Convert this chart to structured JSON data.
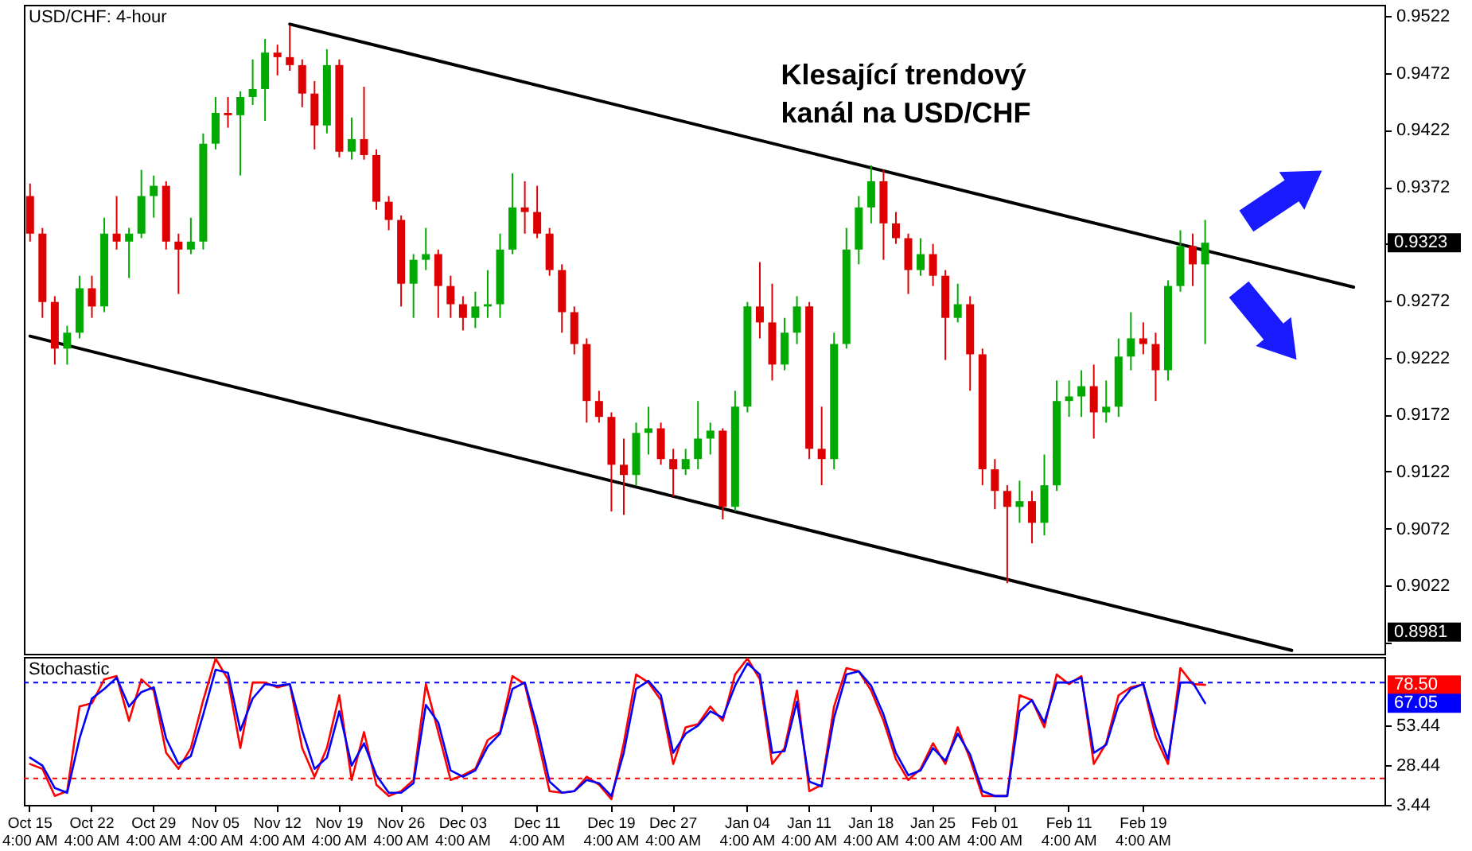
{
  "chart_data": [
    {
      "type": "candlestick",
      "title": "USD/CHF: 4-hour",
      "categories": [
        "Oct 15 4:00 AM",
        null,
        null,
        null,
        null,
        "Oct 22 4:00 AM",
        null,
        null,
        null,
        null,
        "Oct 29 4:00 AM",
        null,
        null,
        null,
        null,
        "Nov 05 4:00 AM",
        null,
        null,
        null,
        null,
        "Nov 12 4:00 AM",
        null,
        null,
        null,
        null,
        "Nov 19 4:00 AM",
        null,
        null,
        null,
        null,
        "Nov 26 4:00 AM",
        null,
        null,
        null,
        null,
        "Dec 03 4:00 AM",
        null,
        null,
        null,
        null,
        null,
        "Dec 11 4:00 AM",
        null,
        null,
        null,
        null,
        null,
        "Dec 19 4:00 AM",
        null,
        null,
        null,
        null,
        "Dec 27 4:00 AM",
        null,
        null,
        null,
        null,
        null,
        "Jan 04 4:00 AM",
        null,
        null,
        null,
        null,
        "Jan 11 4:00 AM",
        null,
        null,
        null,
        null,
        "Jan 18 4:00 AM",
        null,
        null,
        null,
        null,
        "Jan 25 4:00 AM",
        null,
        null,
        null,
        null,
        "Feb 01 4:00 AM",
        null,
        null,
        null,
        null,
        null,
        "Feb 11 4:00 AM",
        null,
        null,
        null,
        null,
        null,
        "Feb 19 4:00 AM",
        null,
        null,
        null,
        null,
        null,
        null,
        null,
        null,
        null,
        null,
        null,
        null,
        null,
        null,
        null,
        null,
        null,
        null,
        null
      ],
      "ohlc": [
        [
          0.9364,
          0.9375,
          0.9324,
          0.9331
        ],
        [
          0.9331,
          0.9336,
          0.9257,
          0.9271
        ],
        [
          0.9271,
          0.9276,
          0.9216,
          0.923
        ],
        [
          0.923,
          0.925,
          0.9216,
          0.9244
        ],
        [
          0.9244,
          0.9294,
          0.9239,
          0.9283
        ],
        [
          0.9283,
          0.9294,
          0.9257,
          0.9267
        ],
        [
          0.9267,
          0.9345,
          0.9262,
          0.9331
        ],
        [
          0.9331,
          0.9364,
          0.9317,
          0.9324
        ],
        [
          0.9324,
          0.9336,
          0.9292,
          0.9331
        ],
        [
          0.9331,
          0.9387,
          0.9327,
          0.9364
        ],
        [
          0.9364,
          0.9382,
          0.9345,
          0.9373
        ],
        [
          0.9373,
          0.9377,
          0.9317,
          0.9324
        ],
        [
          0.9324,
          0.9331,
          0.9278,
          0.9317
        ],
        [
          0.9317,
          0.9345,
          0.9313,
          0.9324
        ],
        [
          0.9324,
          0.9419,
          0.9317,
          0.941
        ],
        [
          0.941,
          0.9451,
          0.9405,
          0.9437
        ],
        [
          0.9437,
          0.9451,
          0.9424,
          0.9435
        ],
        [
          0.9435,
          0.9456,
          0.9382,
          0.9451
        ],
        [
          0.9451,
          0.9484,
          0.9444,
          0.9458
        ],
        [
          0.9458,
          0.9502,
          0.943,
          0.949
        ],
        [
          0.949,
          0.9497,
          0.947,
          0.9486
        ],
        [
          0.9486,
          0.9514,
          0.9474,
          0.9479
        ],
        [
          0.9479,
          0.9484,
          0.9442,
          0.9454
        ],
        [
          0.9454,
          0.9465,
          0.9405,
          0.9426
        ],
        [
          0.9426,
          0.9493,
          0.9419,
          0.9479
        ],
        [
          0.9479,
          0.9484,
          0.9398,
          0.9403
        ],
        [
          0.9403,
          0.9433,
          0.9396,
          0.9414
        ],
        [
          0.9414,
          0.946,
          0.9396,
          0.94
        ],
        [
          0.94,
          0.9405,
          0.9352,
          0.9359
        ],
        [
          0.9359,
          0.9364,
          0.9334,
          0.9343
        ],
        [
          0.9343,
          0.9347,
          0.9267,
          0.9287
        ],
        [
          0.9287,
          0.9313,
          0.9257,
          0.9308
        ],
        [
          0.9308,
          0.9336,
          0.9299,
          0.9313
        ],
        [
          0.9313,
          0.9317,
          0.9257,
          0.9285
        ],
        [
          0.9285,
          0.9294,
          0.9257,
          0.9269
        ],
        [
          0.9269,
          0.9276,
          0.9246,
          0.9257
        ],
        [
          0.9257,
          0.928,
          0.9248,
          0.9267
        ],
        [
          0.9267,
          0.9299,
          0.9257,
          0.9269
        ],
        [
          0.9269,
          0.9331,
          0.9257,
          0.9317
        ],
        [
          0.9317,
          0.9384,
          0.9313,
          0.9354
        ],
        [
          0.9354,
          0.9377,
          0.9331,
          0.935
        ],
        [
          0.935,
          0.9373,
          0.9327,
          0.9331
        ],
        [
          0.9331,
          0.9336,
          0.9294,
          0.9299
        ],
        [
          0.9299,
          0.9304,
          0.9244,
          0.9262
        ],
        [
          0.9262,
          0.9267,
          0.9225,
          0.9234
        ],
        [
          0.9234,
          0.9239,
          0.9165,
          0.9184
        ],
        [
          0.9184,
          0.9193,
          0.9165,
          0.917
        ],
        [
          0.917,
          0.9174,
          0.9087,
          0.9128
        ],
        [
          0.9128,
          0.9151,
          0.9084,
          0.9119
        ],
        [
          0.9119,
          0.9165,
          0.911,
          0.9156
        ],
        [
          0.9156,
          0.9179,
          0.9137,
          0.916
        ],
        [
          0.916,
          0.9165,
          0.9128,
          0.9133
        ],
        [
          0.9133,
          0.9142,
          0.91,
          0.9124
        ],
        [
          0.9124,
          0.9142,
          0.9119,
          0.9133
        ],
        [
          0.9133,
          0.9184,
          0.9124,
          0.9151
        ],
        [
          0.9151,
          0.9165,
          0.9137,
          0.9158
        ],
        [
          0.9158,
          0.916,
          0.908,
          0.9091
        ],
        [
          0.9091,
          0.9193,
          0.9087,
          0.9179
        ],
        [
          0.9179,
          0.9271,
          0.9174,
          0.9267
        ],
        [
          0.9267,
          0.9306,
          0.9239,
          0.9253
        ],
        [
          0.9253,
          0.9287,
          0.9202,
          0.9216
        ],
        [
          0.9216,
          0.9257,
          0.9211,
          0.9244
        ],
        [
          0.9244,
          0.9276,
          0.9234,
          0.9267
        ],
        [
          0.9267,
          0.9271,
          0.9133,
          0.9142
        ],
        [
          0.9142,
          0.9179,
          0.911,
          0.9133
        ],
        [
          0.9133,
          0.9244,
          0.9124,
          0.9234
        ],
        [
          0.9234,
          0.9336,
          0.923,
          0.9317
        ],
        [
          0.9317,
          0.9364,
          0.9304,
          0.9354
        ],
        [
          0.9354,
          0.9391,
          0.934,
          0.9377
        ],
        [
          0.9377,
          0.9387,
          0.9308,
          0.934
        ],
        [
          0.934,
          0.935,
          0.9322,
          0.9327
        ],
        [
          0.9327,
          0.9331,
          0.9278,
          0.9299
        ],
        [
          0.9299,
          0.9327,
          0.9294,
          0.9313
        ],
        [
          0.9313,
          0.9322,
          0.9285,
          0.9294
        ],
        [
          0.9294,
          0.9299,
          0.922,
          0.9257
        ],
        [
          0.9257,
          0.9287,
          0.9253,
          0.9269
        ],
        [
          0.9269,
          0.9276,
          0.9193,
          0.9225
        ],
        [
          0.9225,
          0.923,
          0.911,
          0.9124
        ],
        [
          0.9124,
          0.9133,
          0.9089,
          0.9105
        ],
        [
          0.9105,
          0.911,
          0.9024,
          0.9091
        ],
        [
          0.9091,
          0.9114,
          0.9077,
          0.9096
        ],
        [
          0.9096,
          0.9105,
          0.9059,
          0.9077
        ],
        [
          0.9077,
          0.9137,
          0.9066,
          0.911
        ],
        [
          0.911,
          0.9202,
          0.9105,
          0.9184
        ],
        [
          0.9184,
          0.9202,
          0.917,
          0.9188
        ],
        [
          0.9188,
          0.9211,
          0.917,
          0.9197
        ],
        [
          0.9197,
          0.9216,
          0.9151,
          0.9174
        ],
        [
          0.9174,
          0.9202,
          0.9165,
          0.9179
        ],
        [
          0.9179,
          0.9239,
          0.917,
          0.9223
        ],
        [
          0.9223,
          0.9262,
          0.9211,
          0.9239
        ],
        [
          0.9239,
          0.9253,
          0.9225,
          0.9234
        ],
        [
          0.9234,
          0.9244,
          0.9184,
          0.9211
        ],
        [
          0.9211,
          0.929,
          0.9202,
          0.9285
        ],
        [
          0.9285,
          0.9334,
          0.928,
          0.932
        ],
        [
          0.932,
          0.9331,
          0.9285,
          0.9304
        ],
        [
          0.9304,
          0.9343,
          0.9234,
          0.9323
        ],
        null,
        null,
        null,
        null,
        null,
        null,
        null,
        null,
        null,
        null,
        null,
        null,
        null,
        null
      ],
      "colors": [
        "#dd0000",
        "#dd0000",
        "#dd0000",
        "#00aa00",
        "#00aa00",
        "#dd0000",
        "#00aa00",
        "#dd0000",
        "#00aa00",
        "#00aa00",
        "#00aa00",
        "#dd0000",
        "#dd0000",
        "#00aa00",
        "#00aa00",
        "#00aa00",
        "#dd0000",
        "#00aa00",
        "#00aa00",
        "#00aa00",
        "#dd0000",
        "#dd0000",
        "#dd0000",
        "#dd0000",
        "#00aa00",
        "#dd0000",
        "#00aa00",
        "#dd0000",
        "#dd0000",
        "#dd0000",
        "#dd0000",
        "#00aa00",
        "#00aa00",
        "#dd0000",
        "#dd0000",
        "#dd0000",
        "#00aa00",
        "#00aa00",
        "#00aa00",
        "#00aa00",
        "#dd0000",
        "#dd0000",
        "#dd0000",
        "#dd0000",
        "#dd0000",
        "#dd0000",
        "#dd0000",
        "#dd0000",
        "#dd0000",
        "#00aa00",
        "#00aa00",
        "#dd0000",
        "#dd0000",
        "#00aa00",
        "#00aa00",
        "#00aa00",
        "#dd0000",
        "#00aa00",
        "#00aa00",
        "#dd0000",
        "#dd0000",
        "#00aa00",
        "#00aa00",
        "#dd0000",
        "#dd0000",
        "#00aa00",
        "#00aa00",
        "#00aa00",
        "#00aa00",
        "#dd0000",
        "#dd0000",
        "#dd0000",
        "#00aa00",
        "#dd0000",
        "#dd0000",
        "#00aa00",
        "#dd0000",
        "#dd0000",
        "#dd0000",
        "#dd0000",
        "#00aa00",
        "#dd0000",
        "#00aa00",
        "#00aa00",
        "#00aa00",
        "#00aa00",
        "#dd0000",
        "#00aa00",
        "#00aa00",
        "#00aa00",
        "#dd0000",
        "#dd0000",
        "#00aa00",
        "#00aa00",
        "#dd0000",
        "#00aa00",
        null,
        null,
        null,
        null,
        null,
        null,
        null,
        null,
        null,
        null,
        null,
        null,
        null,
        null
      ],
      "series": [
        {
          "type": "line",
          "color": "#000000",
          "values": [
            null,
            null,
            null,
            null,
            null,
            null,
            null,
            null,
            null,
            null,
            null,
            null,
            null,
            null,
            null,
            null,
            null,
            null,
            null,
            null,
            null,
            0.9515,
            null,
            null,
            null,
            null,
            null,
            null,
            null,
            null,
            null,
            null,
            null,
            null,
            null,
            null,
            null,
            null,
            null,
            null,
            null,
            null,
            null,
            null,
            null,
            null,
            null,
            null,
            null,
            null,
            null,
            null,
            null,
            null,
            null,
            null,
            null,
            null,
            null,
            null,
            null,
            null,
            null,
            null,
            null,
            null,
            null,
            null,
            null,
            null,
            null,
            null,
            null,
            null,
            null,
            null,
            null,
            null,
            null,
            null,
            null,
            null,
            null,
            null,
            null,
            null,
            null,
            null,
            null,
            null,
            null,
            null,
            null,
            null,
            null,
            null,
            null,
            null,
            null,
            null,
            null,
            null,
            null,
            null,
            null,
            null,
            null,
            0.9284,
            null,
            null
          ]
        },
        {
          "type": "line",
          "color": "#000000",
          "values": [
            0.9241,
            null,
            null,
            null,
            null,
            null,
            null,
            null,
            null,
            null,
            null,
            null,
            null,
            null,
            null,
            null,
            null,
            null,
            null,
            null,
            null,
            null,
            null,
            null,
            null,
            null,
            null,
            null,
            null,
            null,
            null,
            null,
            null,
            null,
            null,
            null,
            null,
            null,
            null,
            null,
            null,
            null,
            null,
            null,
            null,
            null,
            null,
            null,
            null,
            null,
            null,
            null,
            null,
            null,
            null,
            null,
            null,
            null,
            null,
            null,
            null,
            null,
            null,
            null,
            null,
            null,
            null,
            null,
            null,
            null,
            null,
            null,
            null,
            null,
            null,
            null,
            null,
            null,
            null,
            null,
            null,
            null,
            null,
            null,
            null,
            null,
            null,
            null,
            null,
            null,
            null,
            null,
            null,
            null,
            null,
            null,
            null,
            null,
            null,
            null,
            null,
            null,
            0.8965,
            null,
            null,
            null,
            null,
            null,
            null,
            null
          ]
        }
      ],
      "ylim": [
        0.8962,
        0.9532
      ],
      "yticks": [
        {
          "value": 0.8972,
          "label": null
        },
        0.9022,
        0.9072,
        0.9122,
        0.9172,
        0.9222,
        0.9272,
        {
          "value": 0.9322,
          "label": null
        },
        0.9372,
        0.9422,
        0.9472,
        0.9522
      ],
      "tick_labels": "y",
      "annotations": [
        "Klesající trendový kanál na USD/CHF",
        "0.9323",
        "0.8981"
      ]
    },
    {
      "type": "line",
      "title": "Stochastic",
      "categories": [
        "Oct 15 4:00 AM",
        null,
        null,
        null,
        null,
        "Oct 22 4:00 AM",
        null,
        null,
        null,
        null,
        "Oct 29 4:00 AM",
        null,
        null,
        null,
        null,
        "Nov 05 4:00 AM",
        null,
        null,
        null,
        null,
        "Nov 12 4:00 AM",
        null,
        null,
        null,
        null,
        "Nov 19 4:00 AM",
        null,
        null,
        null,
        null,
        "Nov 26 4:00 AM",
        null,
        null,
        null,
        null,
        "Dec 03 4:00 AM",
        null,
        null,
        null,
        null,
        null,
        "Dec 11 4:00 AM",
        null,
        null,
        null,
        null,
        null,
        "Dec 19 4:00 AM",
        null,
        null,
        null,
        null,
        "Dec 27 4:00 AM",
        null,
        null,
        null,
        null,
        null,
        "Jan 04 4:00 AM",
        null,
        null,
        null,
        null,
        "Jan 11 4:00 AM",
        null,
        null,
        null,
        null,
        "Jan 18 4:00 AM",
        null,
        null,
        null,
        null,
        "Jan 25 4:00 AM",
        null,
        null,
        null,
        null,
        "Feb 01 4:00 AM",
        null,
        null,
        null,
        null,
        null,
        "Feb 11 4:00 AM",
        null,
        null,
        null,
        null,
        null,
        "Feb 19 4:00 AM",
        null,
        null,
        null,
        null,
        null,
        null,
        null,
        null,
        null,
        null,
        null,
        null,
        null,
        null,
        null,
        null,
        null,
        null,
        null
      ],
      "series": [
        {
          "color": "#ff0000",
          "values": [
            29,
            26,
            9,
            12,
            65,
            67,
            82,
            84,
            56,
            82,
            75,
            36,
            26,
            39,
            69,
            95,
            82,
            39,
            80,
            80,
            77,
            79,
            39,
            21,
            39,
            72,
            19,
            49,
            16,
            9,
            12,
            19,
            79,
            49,
            19,
            22,
            26,
            44,
            49,
            84,
            79,
            46,
            12,
            11,
            12,
            21,
            16,
            7,
            42,
            85,
            80,
            69,
            29,
            52,
            54,
            65,
            56,
            85,
            95,
            82,
            29,
            39,
            75,
            12,
            16,
            65,
            89,
            87,
            75,
            56,
            32,
            19,
            26,
            42,
            29,
            52,
            32,
            9,
            9,
            9,
            72,
            69,
            52,
            85,
            79,
            84,
            29,
            42,
            72,
            77,
            79,
            46,
            29,
            89,
            79,
            78.5,
            null,
            null,
            null,
            null,
            null,
            null,
            null,
            null,
            null,
            null,
            null,
            null,
            null,
            null
          ]
        },
        {
          "color": "#0000ff",
          "values": [
            33,
            28,
            14,
            11,
            45,
            70,
            76,
            83,
            65,
            74,
            77,
            45,
            29,
            34,
            60,
            88,
            86,
            50,
            70,
            79,
            78,
            79,
            50,
            26,
            33,
            62,
            28,
            42,
            22,
            11,
            11,
            17,
            66,
            55,
            25,
            21,
            25,
            40,
            48,
            76,
            80,
            52,
            18,
            11,
            12,
            19,
            17,
            9,
            36,
            76,
            81,
            72,
            36,
            48,
            53,
            62,
            58,
            78,
            92,
            85,
            36,
            37,
            68,
            18,
            15,
            58,
            85,
            87,
            78,
            60,
            36,
            22,
            25,
            39,
            31,
            48,
            35,
            12,
            9,
            9,
            62,
            69,
            55,
            80,
            80,
            83,
            36,
            41,
            66,
            76,
            79,
            52,
            32,
            80,
            80,
            67.05,
            null,
            null,
            null,
            null,
            null,
            null,
            null,
            null,
            null,
            null,
            null,
            null,
            null,
            null
          ]
        }
      ],
      "ylim": [
        3.44,
        96
      ],
      "yticks": [
        3.44,
        28.44,
        53.44
      ],
      "ref_lines": [
        {
          "axis": "y",
          "value": 80,
          "color": "#0000ff",
          "line_style": "dotted"
        },
        {
          "axis": "y",
          "value": 20,
          "color": "#ff0000",
          "line_style": "dotted"
        }
      ],
      "annotations": [
        "78.50",
        "67.05"
      ]
    }
  ]
}
